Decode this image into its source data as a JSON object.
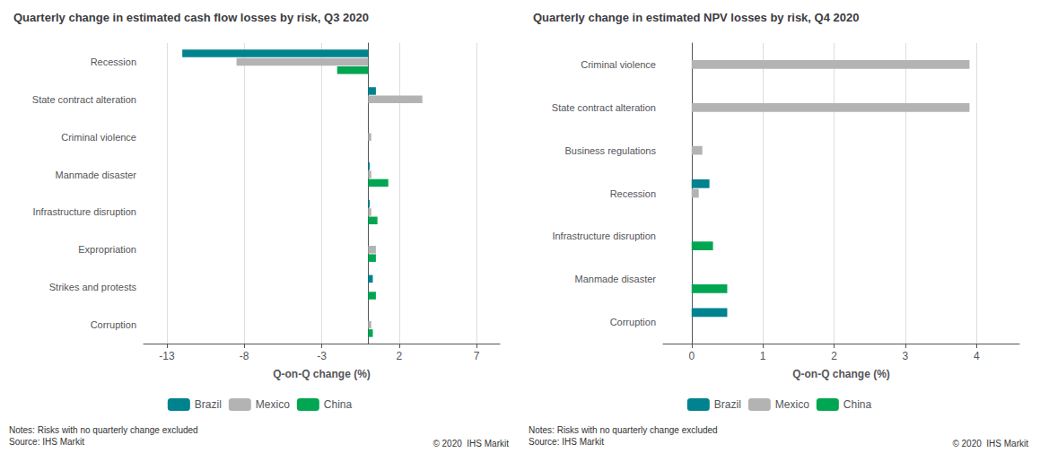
{
  "chart_data": [
    {
      "type": "bar",
      "orientation": "horizontal",
      "title": "Quarterly change in estimated cash flow losses by risk, Q3 2020",
      "xlabel": "Q-on-Q change (%)",
      "categories": [
        "Corruption",
        "Strikes and protests",
        "Expropriation",
        "Infrastructure disruption",
        "Manmade disaster",
        "Criminal violence",
        "State contract alteration",
        "Recession"
      ],
      "series": [
        {
          "name": "Brazil",
          "color": "#00838f",
          "values": [
            0.0,
            0.3,
            0.0,
            0.1,
            0.1,
            0.0,
            0.5,
            -12.0
          ]
        },
        {
          "name": "Mexico",
          "color": "#b3b3b3",
          "values": [
            0.2,
            0.0,
            0.5,
            0.2,
            0.2,
            0.2,
            3.5,
            -8.5
          ]
        },
        {
          "name": "China",
          "color": "#00a651",
          "values": [
            0.3,
            0.5,
            0.5,
            0.6,
            1.3,
            0.0,
            0.0,
            -2.0
          ]
        }
      ],
      "xlim": [
        -14.5,
        8.5
      ],
      "xticks": [
        -13,
        -8,
        -3,
        2,
        7
      ],
      "grid": true,
      "legend": "bottom",
      "annotations": [
        "Notes: Risks with no quarterly change excluded\nSource: IHS Markit",
        "© 2020  IHS Markit"
      ]
    },
    {
      "type": "bar",
      "orientation": "horizontal",
      "title": "Quarterly change in estimated NPV losses by risk, Q4 2020",
      "xlabel": "Q-on-Q change (%)",
      "categories": [
        "Corruption",
        "Manmade disaster",
        "Infrastructure disruption",
        "Recession",
        "Business regulations",
        "State contract alteration",
        "Criminal violence"
      ],
      "series": [
        {
          "name": "Brazil",
          "color": "#00838f",
          "values": [
            0.5,
            0.0,
            0.0,
            0.25,
            0.0,
            0.0,
            0.0
          ]
        },
        {
          "name": "Mexico",
          "color": "#b3b3b3",
          "values": [
            0.0,
            0.0,
            0.0,
            0.1,
            0.15,
            3.9,
            3.9
          ]
        },
        {
          "name": "China",
          "color": "#00a651",
          "values": [
            0.0,
            0.5,
            0.3,
            0.0,
            0.0,
            0.0,
            0.0
          ]
        }
      ],
      "xlim": [
        -0.4,
        4.6
      ],
      "xticks": [
        0,
        1,
        2,
        3,
        4
      ],
      "grid": true,
      "legend": "bottom",
      "annotations": [
        "Notes: Risks with no quarterly change excluded\nSource: IHS Markit",
        "© 2020  IHS Markit"
      ]
    }
  ]
}
